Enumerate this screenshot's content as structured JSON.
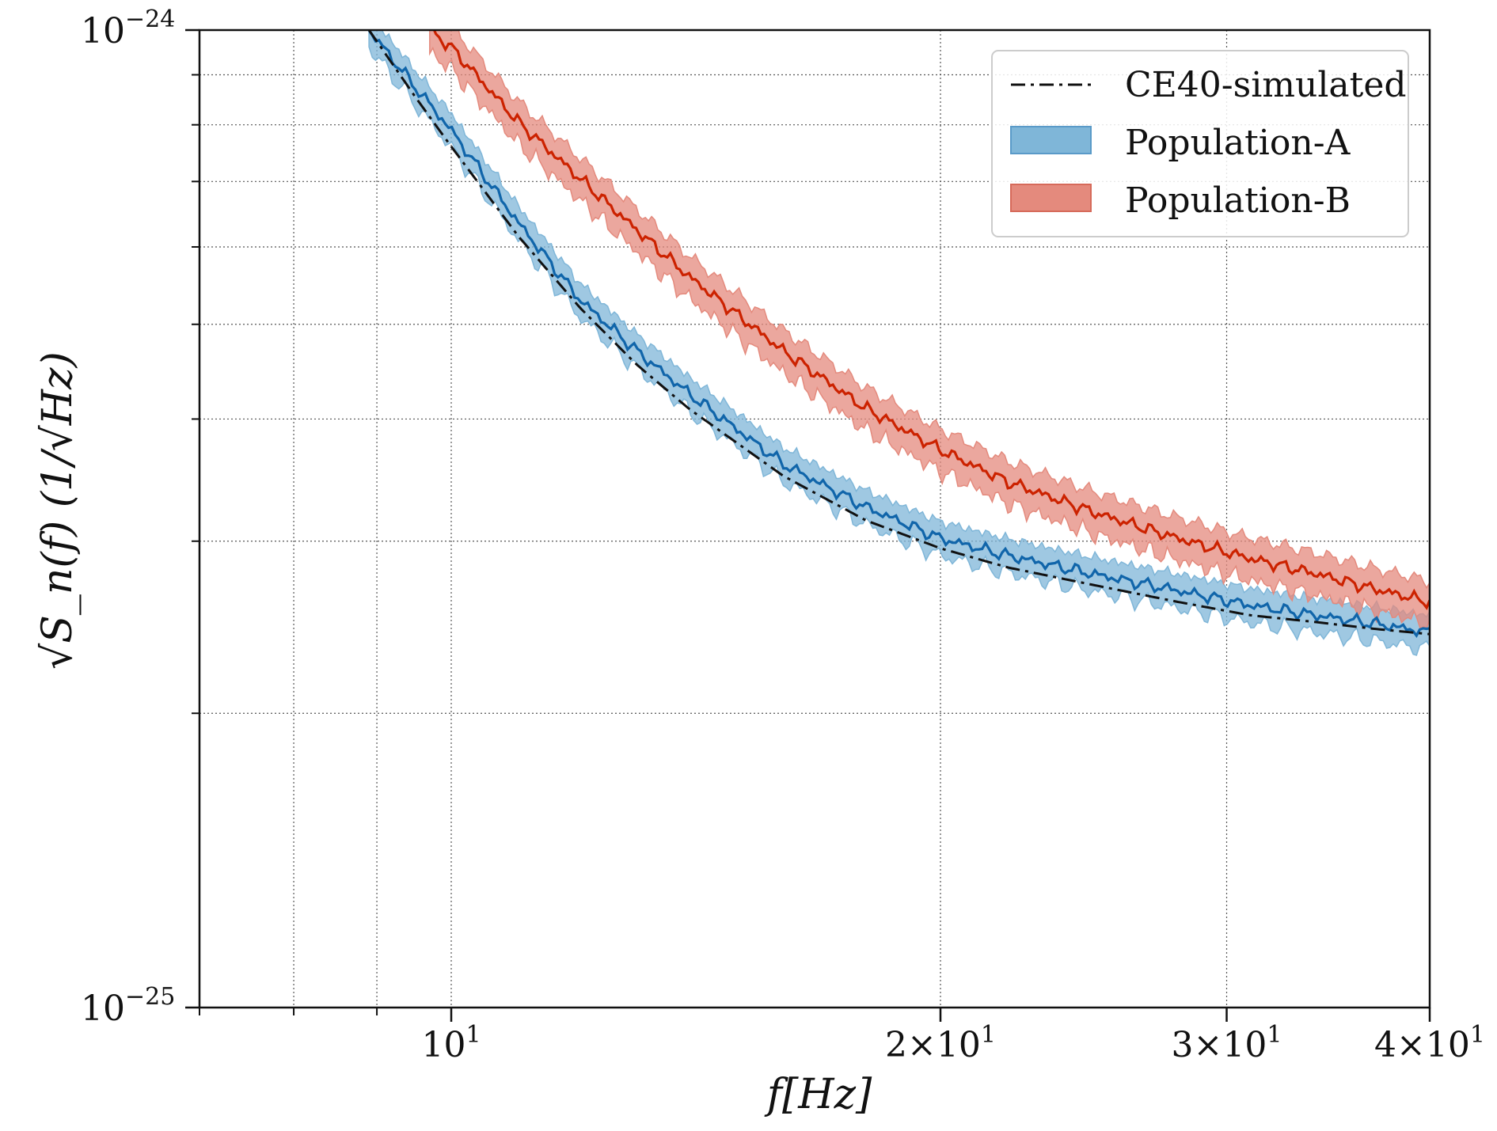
{
  "chart_data": {
    "type": "line",
    "title": "",
    "xlabel": "f[Hz]",
    "ylabel": "√S_n(f) (1/√Hz)",
    "x_scale": "log",
    "y_scale": "log",
    "xlim": [
      7,
      40
    ],
    "ylim": [
      1e-25,
      1e-24
    ],
    "grid": true,
    "legend_position": "top-right",
    "x_ticks": [
      {
        "value": 10,
        "label": "10",
        "exp": "1",
        "prefix": ""
      },
      {
        "value": 20,
        "label": "10",
        "exp": "1",
        "prefix": "2×"
      },
      {
        "value": 30,
        "label": "10",
        "exp": "1",
        "prefix": "3×"
      },
      {
        "value": 40,
        "label": "10",
        "exp": "1",
        "prefix": "4×"
      }
    ],
    "y_ticks": [
      {
        "value": 1e-24,
        "label": "10",
        "exp": "−24"
      },
      {
        "value": 1e-25,
        "label": "10",
        "exp": "−25"
      }
    ],
    "x_minor_ticks": [
      7,
      8,
      9,
      10,
      20,
      30,
      40
    ],
    "y_minor_ticks": [
      2e-25,
      3e-25,
      4e-25,
      5e-25,
      6e-25,
      7e-25,
      8e-25,
      9e-25
    ],
    "series": [
      {
        "name": "CE40-simulated",
        "style": "dashdot",
        "color": "#111111",
        "x": [
          8.9,
          9.5,
          10,
          11,
          12,
          13,
          14,
          16,
          18,
          20,
          22,
          25,
          28,
          31,
          34,
          37,
          40
        ],
        "y": [
          1e-24,
          8.55e-25,
          7.6e-25,
          6.15e-25,
          5.2e-25,
          4.55e-25,
          4.1e-25,
          3.5e-25,
          3.15e-25,
          2.95e-25,
          2.82e-25,
          2.7e-25,
          2.6e-25,
          2.52e-25,
          2.48e-25,
          2.44e-25,
          2.41e-25
        ]
      },
      {
        "name": "Population-A",
        "style": "band",
        "color": "#1065aa",
        "fill": "#7fb6d8",
        "x": [
          8.9,
          9.5,
          10,
          11,
          12,
          13,
          14,
          16,
          18,
          20,
          22,
          25,
          28,
          31,
          34,
          37,
          40
        ],
        "y": [
          1e-24,
          8.75e-25,
          7.9e-25,
          6.35e-25,
          5.3e-25,
          4.7e-25,
          4.25e-25,
          3.6e-25,
          3.25e-25,
          3.02e-25,
          2.9e-25,
          2.77e-25,
          2.67e-25,
          2.58e-25,
          2.52e-25,
          2.47e-25,
          2.42e-25
        ],
        "spread": 0.04
      },
      {
        "name": "Population-B",
        "style": "band",
        "color": "#cc2200",
        "fill": "#e48a7d",
        "x": [
          9.7,
          10,
          11,
          12,
          13,
          14,
          16,
          18,
          20,
          22,
          25,
          28,
          31,
          34,
          37,
          40
        ],
        "y": [
          1e-24,
          9.6e-25,
          8.05e-25,
          7.05e-25,
          6.25e-25,
          5.6e-25,
          4.7e-25,
          4.1e-25,
          3.72e-25,
          3.45e-25,
          3.2e-25,
          3.02e-25,
          2.88e-25,
          2.78e-25,
          2.68e-25,
          2.6e-25
        ],
        "spread": 0.05
      }
    ]
  }
}
